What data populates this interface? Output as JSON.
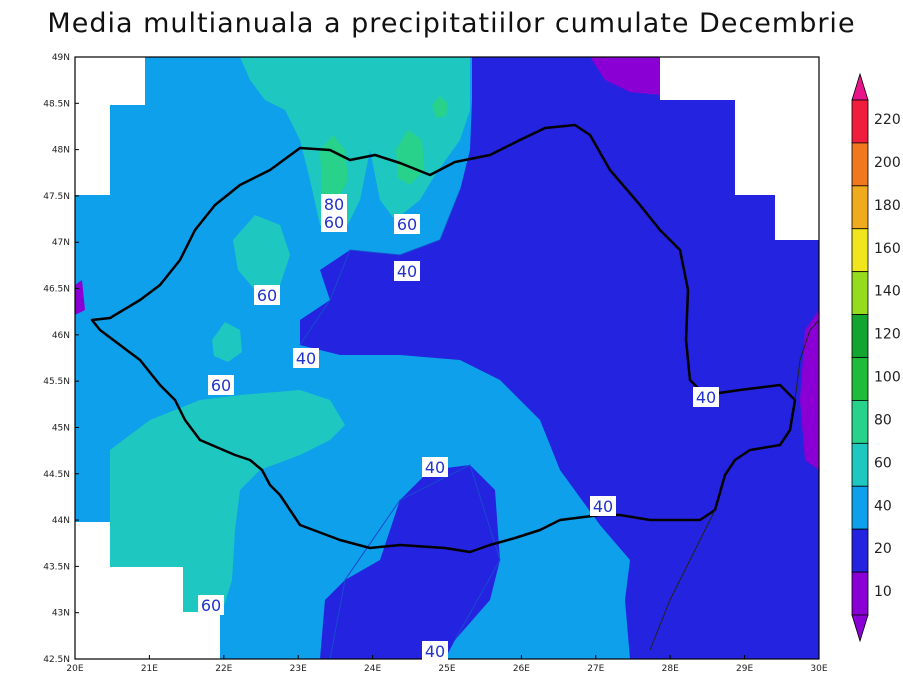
{
  "title": "Media multianuala a precipitatiilor cumulate Decembrie",
  "map": {
    "lat_ticks": [
      "49N",
      "48.5N",
      "48N",
      "47.5N",
      "47N",
      "46.5N",
      "46N",
      "45.5N",
      "45N",
      "44.5N",
      "44N",
      "43.5N",
      "43N",
      "42.5N"
    ],
    "lon_ticks": [
      "20E",
      "21E",
      "22E",
      "23E",
      "24E",
      "25E",
      "26E",
      "27E",
      "28E",
      "29E",
      "30E"
    ],
    "contour_labels": [
      "80",
      "60",
      "60",
      "40",
      "60",
      "40",
      "60",
      "40",
      "40",
      "40",
      "60",
      "40"
    ]
  },
  "colorbar": {
    "levels": [
      "220",
      "200",
      "180",
      "160",
      "140",
      "120",
      "100",
      "80",
      "60",
      "40",
      "20",
      "10"
    ],
    "colors": {
      "c10": "#8a00d4",
      "c20": "#2323e0",
      "c40": "#0ea0ea",
      "c60": "#1ec8c0",
      "c80": "#28d28a",
      "c100": "#1fbc3c",
      "c120": "#12a530",
      "c140": "#96dc1e",
      "c160": "#f0e61e",
      "c180": "#f0aa1e",
      "c200": "#f0781e",
      "c220": "#f01e3c",
      "top": "#e8148c"
    }
  }
}
